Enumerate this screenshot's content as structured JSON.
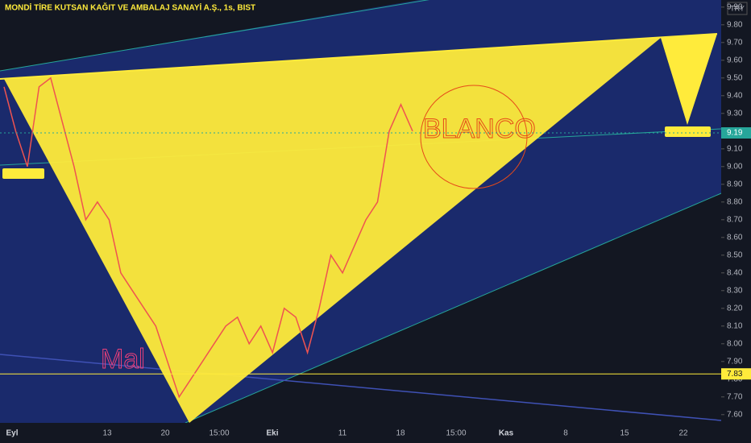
{
  "header": {
    "title": "MONDİ TİRE KUTSAN KAĞIT VE AMBALAJ SANAYİ A.Ş., 1s, BIST",
    "currency": "TRY"
  },
  "chart_data": {
    "type": "line",
    "color": "#ef5350",
    "values": [
      9.45,
      9.2,
      9.0,
      9.45,
      9.5,
      9.25,
      9.0,
      8.7,
      8.8,
      8.7,
      8.4,
      8.3,
      8.2,
      8.1,
      7.9,
      7.7,
      7.8,
      7.9,
      8.0,
      8.1,
      8.15,
      8.0,
      8.1,
      7.95,
      8.2,
      8.15,
      7.95,
      8.2,
      8.5,
      8.4,
      8.55,
      8.7,
      8.8,
      9.2,
      9.35,
      9.2
    ],
    "ylim": [
      7.44,
      9.94
    ],
    "yticks": [
      {
        "value": 9.9,
        "label": "9.90"
      },
      {
        "value": 9.8,
        "label": "9.80"
      },
      {
        "value": 9.7,
        "label": "9.70"
      },
      {
        "value": 9.6,
        "label": "9.60"
      },
      {
        "value": 9.5,
        "label": "9.50"
      },
      {
        "value": 9.4,
        "label": "9.40"
      },
      {
        "value": 9.3,
        "label": "9.30"
      },
      {
        "value": 9.2,
        "label": "9.20"
      },
      {
        "value": 9.1,
        "label": "9.10"
      },
      {
        "value": 9.0,
        "label": "9.00"
      },
      {
        "value": 8.9,
        "label": "8.90"
      },
      {
        "value": 8.8,
        "label": "8.80"
      },
      {
        "value": 8.7,
        "label": "8.70"
      },
      {
        "value": 8.6,
        "label": "8.60"
      },
      {
        "value": 8.5,
        "label": "8.50"
      },
      {
        "value": 8.4,
        "label": "8.40"
      },
      {
        "value": 8.3,
        "label": "8.30"
      },
      {
        "value": 8.2,
        "label": "8.20"
      },
      {
        "value": 8.1,
        "label": "8.10"
      },
      {
        "value": 8.0,
        "label": "8.00"
      },
      {
        "value": 7.9,
        "label": "7.90"
      },
      {
        "value": 7.8,
        "label": "7.80"
      },
      {
        "value": 7.7,
        "label": "7.70"
      },
      {
        "value": 7.6,
        "label": "7.60"
      }
    ],
    "time_axis": [
      "Eyl",
      "13",
      "20",
      "15:00",
      "Eki",
      "11",
      "18",
      "15:00",
      "Kas",
      "8",
      "15",
      "22"
    ],
    "price_tags": [
      {
        "value": 9.19,
        "label": "9.19",
        "color": "#26a69a"
      },
      {
        "value": 7.83,
        "label": "7.83",
        "color": "#ffeb3b"
      }
    ],
    "annotations": [
      "BLANCO",
      "Mal"
    ]
  }
}
